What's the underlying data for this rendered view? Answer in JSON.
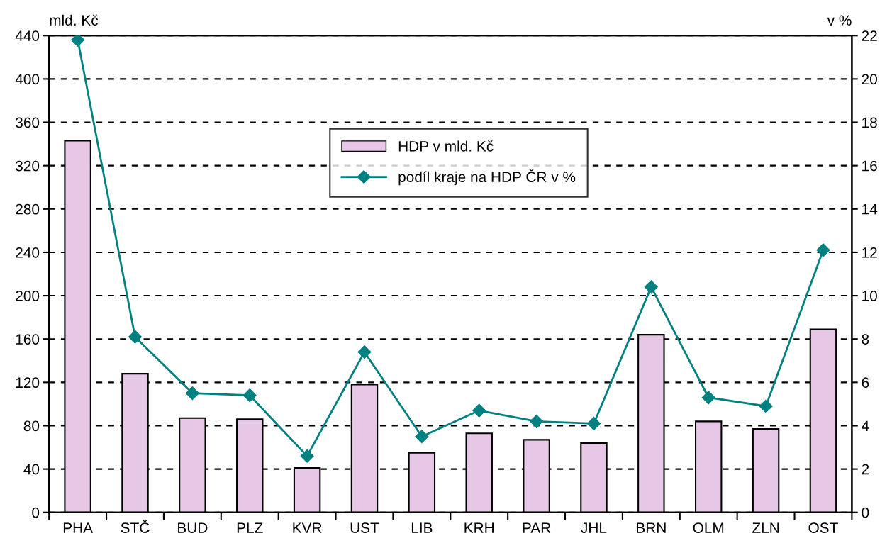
{
  "chart_data": {
    "type": "bar",
    "categories": [
      "PHA",
      "STČ",
      "BUD",
      "PLZ",
      "KVR",
      "UST",
      "LIB",
      "KRH",
      "PAR",
      "JHL",
      "BRN",
      "OLM",
      "ZLN",
      "OST"
    ],
    "series": [
      {
        "name": "HDP v mld. Kč",
        "color": "#e6c8e6",
        "values": [
          343,
          128,
          87,
          86,
          41,
          118,
          55,
          73,
          67,
          64,
          164,
          84,
          77,
          169
        ]
      },
      {
        "name": "podíl kraje na HDP ČR v %",
        "type": "line",
        "axis": "y2",
        "color": "#008080",
        "values": [
          21.8,
          8.1,
          5.5,
          5.4,
          2.6,
          7.4,
          3.5,
          4.7,
          4.2,
          4.1,
          10.4,
          5.3,
          4.9,
          12.1
        ]
      }
    ],
    "ylabel": "mld. Kč",
    "y2label": "v %",
    "ylim": [
      0,
      440
    ],
    "yticks": [
      0,
      40,
      80,
      120,
      160,
      200,
      240,
      280,
      320,
      360,
      400,
      440
    ],
    "y2lim": [
      0,
      22
    ],
    "y2ticks": [
      0,
      2,
      4,
      6,
      8,
      10,
      12,
      14,
      16,
      18,
      20,
      22
    ],
    "grid": "y",
    "legend": "top",
    "marker": "diamond",
    "line_style": "solid"
  }
}
